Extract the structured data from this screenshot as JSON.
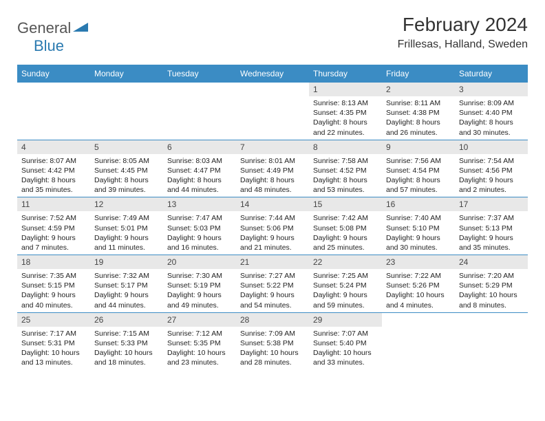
{
  "brand": {
    "general": "General",
    "blue": "Blue"
  },
  "title": "February 2024",
  "location": "Frillesas, Halland, Sweden",
  "colors": {
    "header_bg": "#3b8cc4",
    "header_fg": "#ffffff",
    "daynum_bg": "#e8e8e8",
    "border": "#3b8cc4",
    "logo_blue": "#2a7ab0",
    "logo_text": "#555555"
  },
  "day_headers": [
    "Sunday",
    "Monday",
    "Tuesday",
    "Wednesday",
    "Thursday",
    "Friday",
    "Saturday"
  ],
  "weeks": [
    [
      null,
      null,
      null,
      null,
      {
        "n": "1",
        "sr": "8:13 AM",
        "ss": "4:35 PM",
        "dl": "8 hours and 22 minutes."
      },
      {
        "n": "2",
        "sr": "8:11 AM",
        "ss": "4:38 PM",
        "dl": "8 hours and 26 minutes."
      },
      {
        "n": "3",
        "sr": "8:09 AM",
        "ss": "4:40 PM",
        "dl": "8 hours and 30 minutes."
      }
    ],
    [
      {
        "n": "4",
        "sr": "8:07 AM",
        "ss": "4:42 PM",
        "dl": "8 hours and 35 minutes."
      },
      {
        "n": "5",
        "sr": "8:05 AM",
        "ss": "4:45 PM",
        "dl": "8 hours and 39 minutes."
      },
      {
        "n": "6",
        "sr": "8:03 AM",
        "ss": "4:47 PM",
        "dl": "8 hours and 44 minutes."
      },
      {
        "n": "7",
        "sr": "8:01 AM",
        "ss": "4:49 PM",
        "dl": "8 hours and 48 minutes."
      },
      {
        "n": "8",
        "sr": "7:58 AM",
        "ss": "4:52 PM",
        "dl": "8 hours and 53 minutes."
      },
      {
        "n": "9",
        "sr": "7:56 AM",
        "ss": "4:54 PM",
        "dl": "8 hours and 57 minutes."
      },
      {
        "n": "10",
        "sr": "7:54 AM",
        "ss": "4:56 PM",
        "dl": "9 hours and 2 minutes."
      }
    ],
    [
      {
        "n": "11",
        "sr": "7:52 AM",
        "ss": "4:59 PM",
        "dl": "9 hours and 7 minutes."
      },
      {
        "n": "12",
        "sr": "7:49 AM",
        "ss": "5:01 PM",
        "dl": "9 hours and 11 minutes."
      },
      {
        "n": "13",
        "sr": "7:47 AM",
        "ss": "5:03 PM",
        "dl": "9 hours and 16 minutes."
      },
      {
        "n": "14",
        "sr": "7:44 AM",
        "ss": "5:06 PM",
        "dl": "9 hours and 21 minutes."
      },
      {
        "n": "15",
        "sr": "7:42 AM",
        "ss": "5:08 PM",
        "dl": "9 hours and 25 minutes."
      },
      {
        "n": "16",
        "sr": "7:40 AM",
        "ss": "5:10 PM",
        "dl": "9 hours and 30 minutes."
      },
      {
        "n": "17",
        "sr": "7:37 AM",
        "ss": "5:13 PM",
        "dl": "9 hours and 35 minutes."
      }
    ],
    [
      {
        "n": "18",
        "sr": "7:35 AM",
        "ss": "5:15 PM",
        "dl": "9 hours and 40 minutes."
      },
      {
        "n": "19",
        "sr": "7:32 AM",
        "ss": "5:17 PM",
        "dl": "9 hours and 44 minutes."
      },
      {
        "n": "20",
        "sr": "7:30 AM",
        "ss": "5:19 PM",
        "dl": "9 hours and 49 minutes."
      },
      {
        "n": "21",
        "sr": "7:27 AM",
        "ss": "5:22 PM",
        "dl": "9 hours and 54 minutes."
      },
      {
        "n": "22",
        "sr": "7:25 AM",
        "ss": "5:24 PM",
        "dl": "9 hours and 59 minutes."
      },
      {
        "n": "23",
        "sr": "7:22 AM",
        "ss": "5:26 PM",
        "dl": "10 hours and 4 minutes."
      },
      {
        "n": "24",
        "sr": "7:20 AM",
        "ss": "5:29 PM",
        "dl": "10 hours and 8 minutes."
      }
    ],
    [
      {
        "n": "25",
        "sr": "7:17 AM",
        "ss": "5:31 PM",
        "dl": "10 hours and 13 minutes."
      },
      {
        "n": "26",
        "sr": "7:15 AM",
        "ss": "5:33 PM",
        "dl": "10 hours and 18 minutes."
      },
      {
        "n": "27",
        "sr": "7:12 AM",
        "ss": "5:35 PM",
        "dl": "10 hours and 23 minutes."
      },
      {
        "n": "28",
        "sr": "7:09 AM",
        "ss": "5:38 PM",
        "dl": "10 hours and 28 minutes."
      },
      {
        "n": "29",
        "sr": "7:07 AM",
        "ss": "5:40 PM",
        "dl": "10 hours and 33 minutes."
      },
      null,
      null
    ]
  ],
  "labels": {
    "sunrise": "Sunrise:",
    "sunset": "Sunset:",
    "daylight": "Daylight:"
  }
}
